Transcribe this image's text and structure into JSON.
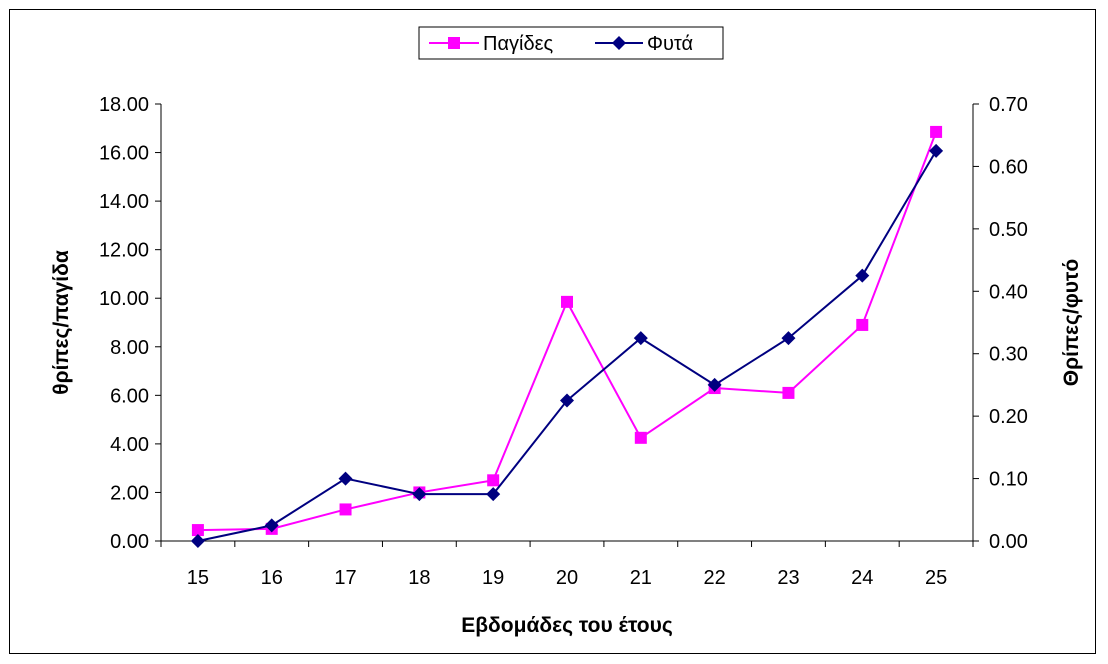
{
  "chart_data": {
    "type": "line",
    "title": "",
    "xlabel": "Εβδομάδες του έτους",
    "ylabel_left": "θρίπες/παγίδα",
    "ylabel_right": "Θρίπες/φυτό",
    "x": [
      "15",
      "16",
      "17",
      "18",
      "19",
      "20",
      "21",
      "22",
      "23",
      "24",
      "25"
    ],
    "ylim_left": [
      0,
      18
    ],
    "ylim_right": [
      0,
      0.7
    ],
    "yticks_left": [
      "0.00",
      "2.00",
      "4.00",
      "6.00",
      "8.00",
      "10.00",
      "12.00",
      "14.00",
      "16.00",
      "18.00"
    ],
    "yticks_right": [
      "0.00",
      "0.10",
      "0.20",
      "0.30",
      "0.40",
      "0.50",
      "0.60",
      "0.70"
    ],
    "legend_position": "top-center",
    "grid": false,
    "series": [
      {
        "name": "Παγίδες",
        "axis": "left",
        "color": "#ff00ff",
        "marker": "square",
        "values": [
          0.45,
          0.5,
          1.3,
          2.0,
          2.5,
          9.85,
          4.25,
          6.3,
          6.1,
          8.9,
          16.85
        ]
      },
      {
        "name": "Φυτά",
        "axis": "right",
        "color": "#000080",
        "marker": "diamond",
        "values": [
          0.0,
          0.025,
          0.1,
          0.075,
          0.075,
          0.225,
          0.325,
          0.25,
          0.325,
          0.425,
          0.625
        ]
      }
    ]
  }
}
